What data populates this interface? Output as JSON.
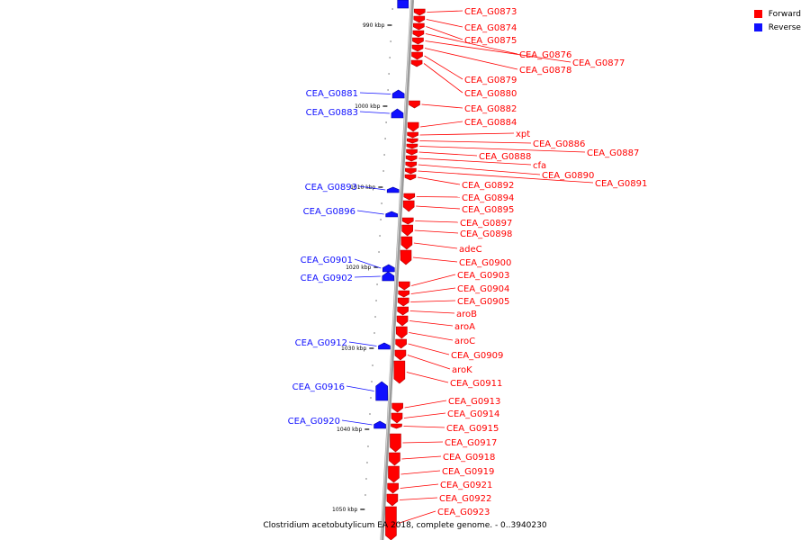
{
  "legend": [
    {
      "label": "Forward",
      "color": "#ff0000"
    },
    {
      "label": "Reverse",
      "color": "#1010ff"
    }
  ],
  "caption": "Clostridium acetobutylicum EA 2018, complete genome. - 0..3940230",
  "colors": {
    "forward": "#ff0000",
    "reverse": "#1010ff",
    "backbone": "#b0b0b0"
  },
  "scale_ticks": [
    "990 kbp",
    "1000 kbp",
    "1010 kbp",
    "1020 kbp",
    "1030 kbp",
    "1040 kbp",
    "1050 kbp"
  ],
  "forward_genes": [
    {
      "name": "CEA_G0873"
    },
    {
      "name": "CEA_G0874"
    },
    {
      "name": "CEA_G0875"
    },
    {
      "name": "CEA_G0876"
    },
    {
      "name": "CEA_G0877"
    },
    {
      "name": "CEA_G0878"
    },
    {
      "name": "CEA_G0879"
    },
    {
      "name": "CEA_G0880"
    },
    {
      "name": "CEA_G0882"
    },
    {
      "name": "CEA_G0884"
    },
    {
      "name": "xpt"
    },
    {
      "name": "CEA_G0886"
    },
    {
      "name": "CEA_G0887"
    },
    {
      "name": "CEA_G0888"
    },
    {
      "name": "cfa"
    },
    {
      "name": "CEA_G0890"
    },
    {
      "name": "CEA_G0891"
    },
    {
      "name": "CEA_G0892"
    },
    {
      "name": "CEA_G0894"
    },
    {
      "name": "CEA_G0895"
    },
    {
      "name": "CEA_G0897"
    },
    {
      "name": "CEA_G0898"
    },
    {
      "name": "adeC"
    },
    {
      "name": "CEA_G0900"
    },
    {
      "name": "CEA_G0903"
    },
    {
      "name": "CEA_G0904"
    },
    {
      "name": "CEA_G0905"
    },
    {
      "name": "aroB"
    },
    {
      "name": "aroA"
    },
    {
      "name": "aroC"
    },
    {
      "name": "CEA_G0909"
    },
    {
      "name": "aroK"
    },
    {
      "name": "CEA_G0911"
    },
    {
      "name": "CEA_G0913"
    },
    {
      "name": "CEA_G0914"
    },
    {
      "name": "CEA_G0915"
    },
    {
      "name": "CEA_G0917"
    },
    {
      "name": "CEA_G0918"
    },
    {
      "name": "CEA_G0919"
    },
    {
      "name": "CEA_G0921"
    },
    {
      "name": "CEA_G0922"
    },
    {
      "name": "CEA_G0923"
    }
  ],
  "reverse_genes": [
    {
      "name": "CEA_G0881"
    },
    {
      "name": "CEA_G0883"
    },
    {
      "name": "CEA_G0893"
    },
    {
      "name": "CEA_G0896"
    },
    {
      "name": "CEA_G0901"
    },
    {
      "name": "CEA_G0902"
    },
    {
      "name": "CEA_G0912"
    },
    {
      "name": "CEA_G0916"
    },
    {
      "name": "CEA_G0920"
    }
  ]
}
